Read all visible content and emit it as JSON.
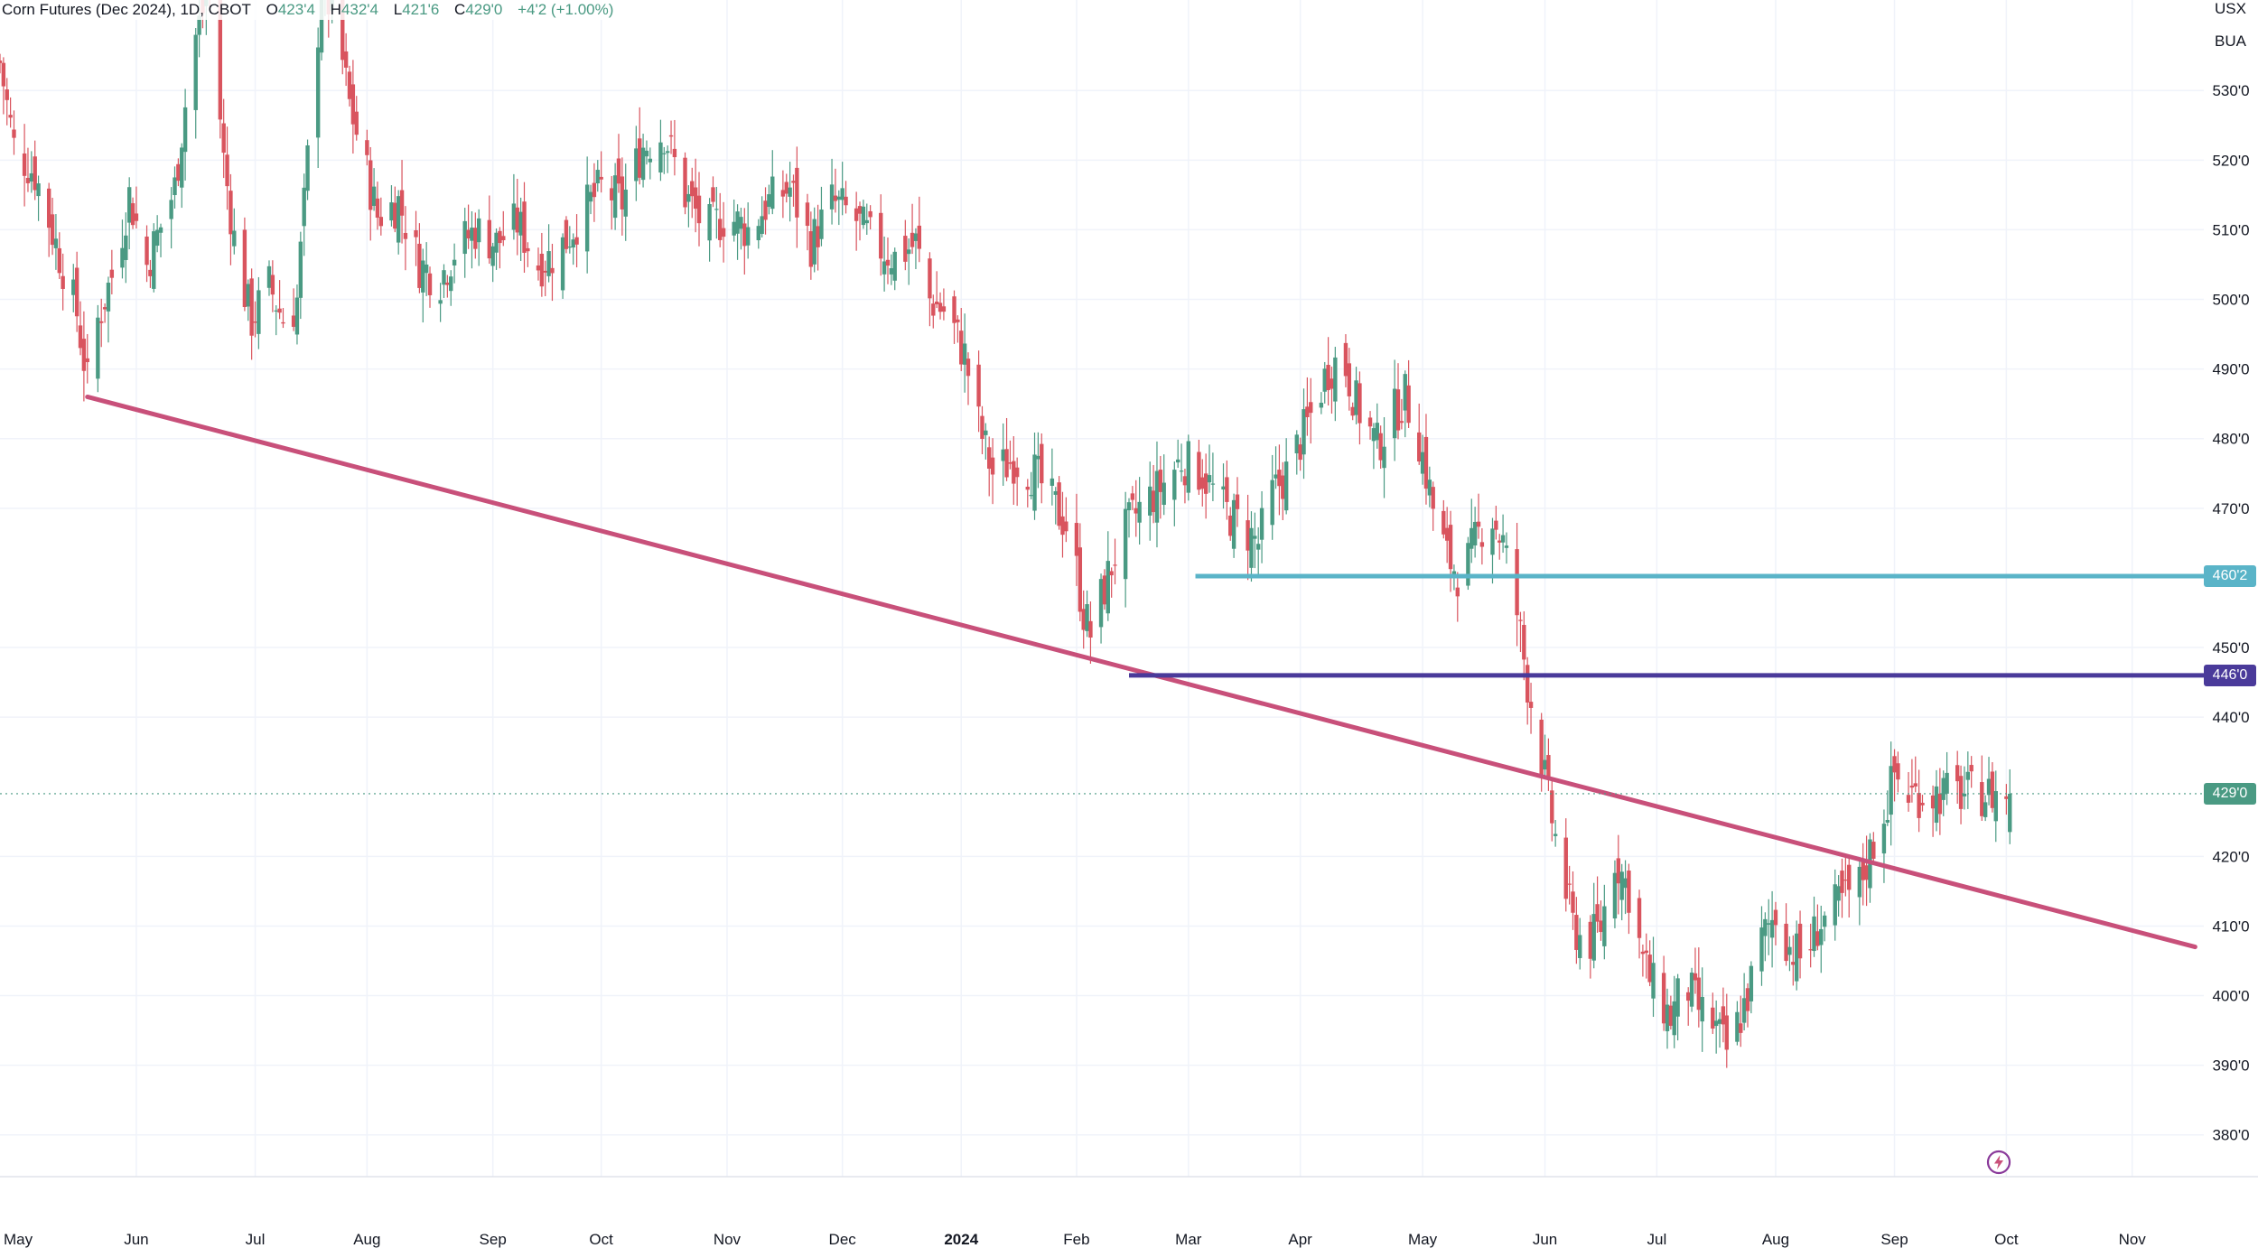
{
  "legend": {
    "symbol": "Corn Futures (Dec 2024), 1D, CBOT",
    "o_label": "O",
    "o_value": "423'4",
    "h_label": "H",
    "h_value": "432'4",
    "l_label": "L",
    "l_value": "421'6",
    "c_label": "C",
    "c_value": "429'0",
    "change": "+4'2 (+1.00%)"
  },
  "axis": {
    "currency": "USX",
    "unit": "BUA"
  },
  "price_tags": [
    {
      "name": "resistance-level-tag",
      "label": "460'2",
      "value": 460.25,
      "color": "#5ab4c8"
    },
    {
      "name": "support-level-tag",
      "label": "446'0",
      "value": 446.0,
      "color": "#4a3a9a"
    },
    {
      "name": "last-price-tag",
      "label": "429'0",
      "value": 429.0,
      "color": "#4a9a83"
    }
  ],
  "colors": {
    "up": "#4a9a83",
    "down": "#d9545e",
    "trendline": "#c8507a",
    "grid": "#f0f3fa"
  },
  "chart_data": {
    "type": "candlestick",
    "title": "Corn Futures (Dec 2024), 1D, CBOT",
    "ylim": [
      374,
      543
    ],
    "y_ticks": [
      {
        "value": 530,
        "label": "530'0"
      },
      {
        "value": 520,
        "label": "520'0"
      },
      {
        "value": 510,
        "label": "510'0"
      },
      {
        "value": 500,
        "label": "500'0"
      },
      {
        "value": 490,
        "label": "490'0"
      },
      {
        "value": 480,
        "label": "480'0"
      },
      {
        "value": 470,
        "label": "470'0"
      },
      {
        "value": 450,
        "label": "450'0"
      },
      {
        "value": 440,
        "label": "440'0"
      },
      {
        "value": 420,
        "label": "420'0"
      },
      {
        "value": 410,
        "label": "410'0"
      },
      {
        "value": 400,
        "label": "400'0"
      },
      {
        "value": 390,
        "label": "390'0"
      },
      {
        "value": 380,
        "label": "380'0"
      }
    ],
    "x_ticks": [
      {
        "day": 0,
        "label": "May",
        "bold": false
      },
      {
        "day": 39,
        "label": "Jun",
        "bold": false
      },
      {
        "day": 73,
        "label": "Jul",
        "bold": false
      },
      {
        "day": 105,
        "label": "Aug",
        "bold": false
      },
      {
        "day": 141,
        "label": "Sep",
        "bold": false
      },
      {
        "day": 172,
        "label": "Oct",
        "bold": false
      },
      {
        "day": 208,
        "label": "Nov",
        "bold": false
      },
      {
        "day": 241,
        "label": "Dec",
        "bold": false
      },
      {
        "day": 275,
        "label": "2024",
        "bold": true
      },
      {
        "day": 308,
        "label": "Feb",
        "bold": false
      },
      {
        "day": 340,
        "label": "Mar",
        "bold": false
      },
      {
        "day": 372,
        "label": "Apr",
        "bold": false
      },
      {
        "day": 407,
        "label": "May",
        "bold": false
      },
      {
        "day": 442,
        "label": "Jun",
        "bold": false
      },
      {
        "day": 474,
        "label": "Jul",
        "bold": false
      },
      {
        "day": 508,
        "label": "Aug",
        "bold": false
      },
      {
        "day": 542,
        "label": "Sep",
        "bold": false
      },
      {
        "day": 574,
        "label": "Oct",
        "bold": false
      },
      {
        "day": 610,
        "label": "Nov",
        "bold": false
      }
    ],
    "day_range": [
      0,
      631
    ],
    "last_day": 575,
    "close_keyframes": [
      [
        0,
        534
      ],
      [
        4,
        522
      ],
      [
        10,
        518
      ],
      [
        16,
        508
      ],
      [
        22,
        498
      ],
      [
        25,
        488
      ],
      [
        28,
        497
      ],
      [
        33,
        505
      ],
      [
        37,
        515
      ],
      [
        42,
        505
      ],
      [
        50,
        516
      ],
      [
        55,
        536
      ],
      [
        60,
        545
      ],
      [
        64,
        520
      ],
      [
        68,
        505
      ],
      [
        72,
        497
      ],
      [
        77,
        502
      ],
      [
        82,
        496
      ],
      [
        85,
        500
      ],
      [
        88,
        520
      ],
      [
        92,
        545
      ],
      [
        96,
        540
      ],
      [
        100,
        528
      ],
      [
        104,
        520
      ],
      [
        108,
        512
      ],
      [
        114,
        514
      ],
      [
        120,
        505
      ],
      [
        126,
        503
      ],
      [
        130,
        507
      ],
      [
        136,
        510
      ],
      [
        142,
        508
      ],
      [
        148,
        511
      ],
      [
        154,
        505
      ],
      [
        160,
        507
      ],
      [
        166,
        512
      ],
      [
        172,
        516
      ],
      [
        178,
        514
      ],
      [
        184,
        522
      ],
      [
        190,
        524
      ],
      [
        196,
        515
      ],
      [
        202,
        510
      ],
      [
        208,
        512
      ],
      [
        214,
        510
      ],
      [
        220,
        514
      ],
      [
        226,
        516
      ],
      [
        232,
        508
      ],
      [
        238,
        514
      ],
      [
        244,
        512
      ],
      [
        250,
        508
      ],
      [
        256,
        506
      ],
      [
        262,
        508
      ],
      [
        266,
        500
      ],
      [
        271,
        498
      ],
      [
        276,
        492
      ],
      [
        280,
        482
      ],
      [
        284,
        475
      ],
      [
        290,
        477
      ],
      [
        296,
        475
      ],
      [
        302,
        470
      ],
      [
        306,
        467
      ],
      [
        310,
        455
      ],
      [
        312,
        452
      ],
      [
        315,
        457
      ],
      [
        320,
        465
      ],
      [
        326,
        470
      ],
      [
        332,
        473
      ],
      [
        338,
        477
      ],
      [
        344,
        475
      ],
      [
        350,
        470
      ],
      [
        356,
        467
      ],
      [
        360,
        465
      ],
      [
        364,
        472
      ],
      [
        368,
        475
      ],
      [
        374,
        482
      ],
      [
        380,
        490
      ],
      [
        384,
        492
      ],
      [
        388,
        485
      ],
      [
        394,
        479
      ],
      [
        398,
        483
      ],
      [
        402,
        486
      ],
      [
        406,
        480
      ],
      [
        410,
        470
      ],
      [
        414,
        463
      ],
      [
        418,
        460
      ],
      [
        422,
        465
      ],
      [
        426,
        470
      ],
      [
        430,
        465
      ],
      [
        434,
        455
      ],
      [
        437,
        445
      ],
      [
        440,
        437
      ],
      [
        443,
        428
      ],
      [
        446,
        420
      ],
      [
        450,
        410
      ],
      [
        454,
        407
      ],
      [
        458,
        410
      ],
      [
        462,
        420
      ],
      [
        466,
        415
      ],
      [
        470,
        405
      ],
      [
        474,
        400
      ],
      [
        478,
        397
      ],
      [
        482,
        402
      ],
      [
        486,
        398
      ],
      [
        490,
        396
      ],
      [
        494,
        392
      ],
      [
        498,
        397
      ],
      [
        500,
        400
      ],
      [
        504,
        408
      ],
      [
        508,
        412
      ],
      [
        512,
        407
      ],
      [
        516,
        405
      ],
      [
        520,
        410
      ],
      [
        524,
        412
      ],
      [
        528,
        414
      ],
      [
        532,
        416
      ],
      [
        536,
        422
      ],
      [
        540,
        428
      ],
      [
        542,
        432
      ],
      [
        545,
        429
      ]
    ],
    "trendline": {
      "from": {
        "day": 25,
        "price": 486
      },
      "to": {
        "day": 628,
        "price": 407
      }
    },
    "horizontal_levels": [
      {
        "name": "resistance-line",
        "price": 460.25,
        "from_day": 342,
        "color": "#5ab4c8"
      },
      {
        "name": "support-line",
        "price": 446.0,
        "from_day": 323,
        "color": "#4a3a9a"
      }
    ],
    "last_price": 429.0
  }
}
